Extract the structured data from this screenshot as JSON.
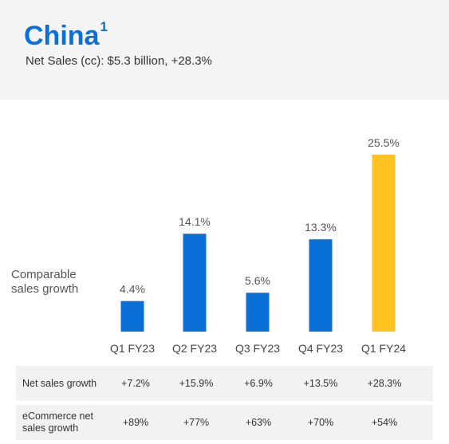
{
  "header": {
    "title": "China",
    "title_footnote": "1",
    "subtitle": "Net Sales (cc): $5.3 billion, +28.3%"
  },
  "chart_data": {
    "type": "bar",
    "categories": [
      "Q1 FY23",
      "Q2 FY23",
      "Q3 FY23",
      "Q4 FY23",
      "Q1 FY24"
    ],
    "values": [
      4.4,
      14.1,
      5.6,
      13.3,
      25.5
    ],
    "value_labels": [
      "4.4%",
      "14.1%",
      "5.6%",
      "13.3%",
      "25.5%"
    ],
    "ylabel": "Comparable sales growth",
    "ylim": [
      0,
      28
    ],
    "grid": false,
    "colors": [
      "#0a6fd6",
      "#0a6fd6",
      "#0a6fd6",
      "#0a6fd6",
      "#ffc220"
    ]
  },
  "table": {
    "rows": [
      {
        "label": "Net sales growth",
        "values": [
          "+7.2%",
          "+15.9%",
          "+6.9%",
          "+13.5%",
          "+28.3%"
        ]
      },
      {
        "label": "eCommerce net sales growth",
        "values": [
          "+89%",
          "+77%",
          "+63%",
          "+70%",
          "+54%"
        ]
      }
    ]
  }
}
